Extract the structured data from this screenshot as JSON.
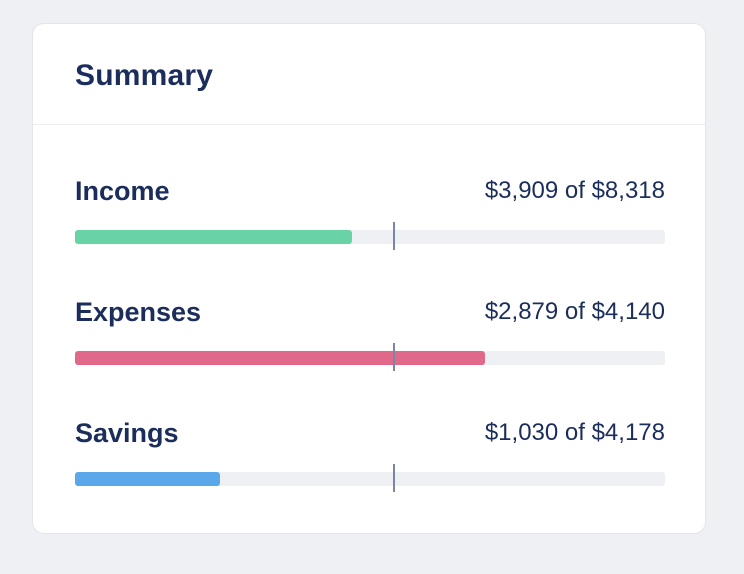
{
  "summary": {
    "title": "Summary",
    "marker_fraction": 0.541,
    "rows": [
      {
        "label": "Income",
        "amount_text": "$3,909 of $8,318",
        "value": 3909,
        "total": 8318,
        "color": "#68d3a5"
      },
      {
        "label": "Expenses",
        "amount_text": "$2,879 of $4,140",
        "value": 2879,
        "total": 4140,
        "color": "#e0698a"
      },
      {
        "label": "Savings",
        "amount_text": "$1,030 of $4,178",
        "value": 1030,
        "total": 4178,
        "color": "#5aa7ea"
      }
    ]
  }
}
